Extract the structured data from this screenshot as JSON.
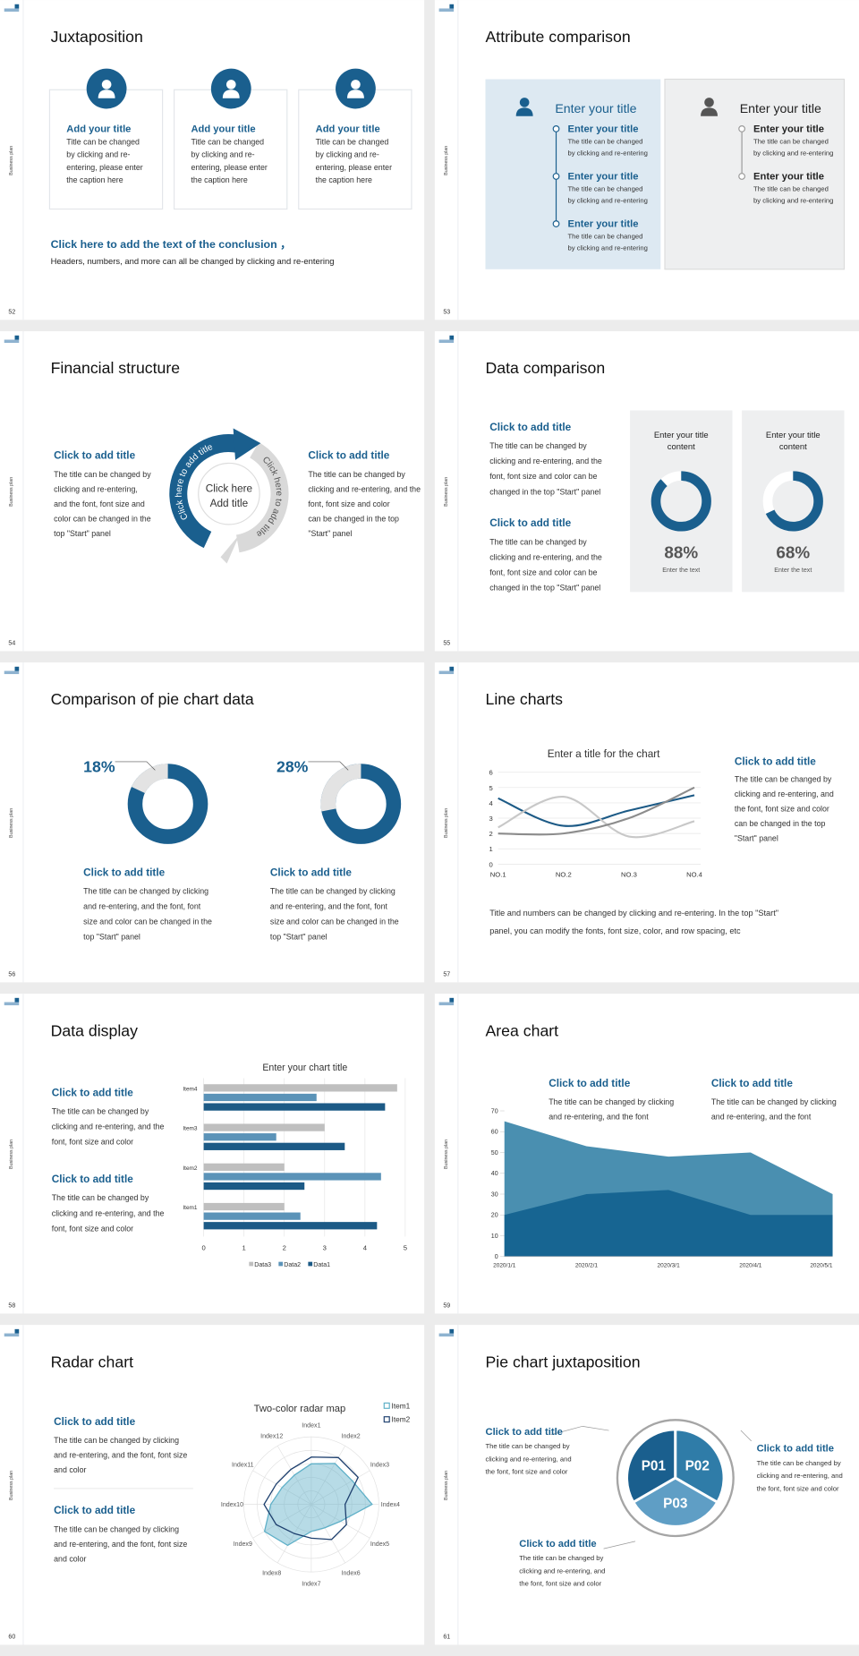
{
  "sidebar_label": "Business plan",
  "slides": [
    {
      "number": 52,
      "title": "Juxtaposition",
      "cards": [
        {
          "title": "Add your title",
          "body": [
            "Title can be changed",
            "by clicking and re-",
            "entering, please enter",
            "the caption here"
          ]
        },
        {
          "title": "Add your title",
          "body": [
            "Title can be changed",
            "by clicking and re-",
            "entering, please enter",
            "the caption here"
          ]
        },
        {
          "title": "Add your title",
          "body": [
            "Title can be changed",
            "by clicking and re-",
            "entering, please enter",
            "the caption here"
          ]
        }
      ],
      "conclusion": {
        "title": "Click here to add the text of the conclusion ，",
        "text": "Headers, numbers, and more can all be changed by clicking and re-entering"
      }
    },
    {
      "number": 53,
      "title": "Attribute comparison",
      "panels": [
        {
          "heading": "Enter your title",
          "items": [
            {
              "title": "Enter your title",
              "body": [
                "The title can be changed",
                "by clicking and re-entering"
              ]
            },
            {
              "title": "Enter your title",
              "body": [
                "The title can be changed",
                "by clicking and re-entering"
              ]
            },
            {
              "title": "Enter your title",
              "body": [
                "The title can be changed",
                "by clicking and re-entering"
              ]
            }
          ]
        },
        {
          "heading": "Enter your title",
          "items": [
            {
              "title": "Enter your title",
              "body": [
                "The title can be changed",
                "by clicking and re-entering"
              ]
            },
            {
              "title": "Enter your title",
              "body": [
                "The title can be changed",
                "by clicking and re-entering"
              ]
            }
          ]
        }
      ]
    },
    {
      "number": 54,
      "title": "Financial structure",
      "blocks": [
        {
          "title": "Click to add title",
          "body": [
            "The title can be changed by",
            "clicking and re-entering,",
            "and the font, font size and",
            "color can be changed in the",
            "top \"Start\" panel"
          ]
        },
        {
          "title": "Click to add title",
          "body": [
            "The title can be changed by",
            "clicking and re-entering, and the",
            "font, font size and color",
            "can be changed in the top",
            "\"Start\" panel"
          ]
        }
      ],
      "center": [
        "Click here",
        "Add title"
      ],
      "arc_labels": [
        "Click here to add title",
        "Click here to add title"
      ]
    },
    {
      "number": 55,
      "title": "Data comparison",
      "blocks": [
        {
          "title": "Click to add title",
          "body": [
            "The title can be changed by",
            "clicking and re-entering, and the",
            "font, font size and color can be",
            "changed in the top \"Start\" panel"
          ]
        },
        {
          "title": "Click to add title",
          "body": [
            "The title can be changed by",
            "clicking and re-entering, and the",
            "font, font size and color can be",
            "changed in the top \"Start\" panel"
          ]
        }
      ],
      "cards": [
        {
          "heading": [
            "Enter your title",
            "content"
          ],
          "value": 88,
          "value_label": "88%",
          "caption": "Enter the text"
        },
        {
          "heading": [
            "Enter your title",
            "content"
          ],
          "value": 68,
          "value_label": "68%",
          "caption": "Enter the text"
        }
      ]
    },
    {
      "number": 56,
      "title": "Comparison of pie chart data",
      "charts": [
        {
          "type": "donut",
          "value": 18,
          "value_label": "18%",
          "title": "Click to add title",
          "body": [
            "The title can be changed by clicking",
            "and re-entering, and the font, font",
            "size and color can be changed in the",
            "top \"Start\" panel"
          ]
        },
        {
          "type": "donut",
          "value": 28,
          "value_label": "28%",
          "title": "Click to add title",
          "body": [
            "The title can be changed by clicking",
            "and re-entering, and the font, font",
            "size and color can be changed in the",
            "top \"Start\" panel"
          ]
        }
      ]
    },
    {
      "number": 57,
      "title": "Line charts",
      "chart_data": {
        "type": "line",
        "title": "Enter a title for the chart",
        "categories": [
          "NO.1",
          "NO.2",
          "NO.3",
          "NO.4"
        ],
        "series": [
          {
            "color": "#1c5a86",
            "values": [
              4.3,
              2.5,
              3.5,
              4.5
            ]
          },
          {
            "color": "#c8c8c8",
            "values": [
              2.4,
              4.4,
              1.8,
              2.8
            ]
          },
          {
            "color": "#8c8c8c",
            "values": [
              2.0,
              2.0,
              3.0,
              5.0
            ]
          }
        ],
        "ylim": [
          0,
          6
        ],
        "yticks": [
          0,
          1,
          2,
          3,
          4,
          5,
          6
        ],
        "grid": true
      },
      "blocks": [
        {
          "title": "Click to add title",
          "body": [
            "The title can be changed by",
            "clicking and re-entering, and",
            "the font, font size and color",
            "can be changed in the top",
            "\"Start\" panel"
          ]
        }
      ],
      "footer": [
        "Title and numbers can be changed by clicking and re-entering. In the top \"Start\"",
        "panel, you can modify the fonts, font size, color, and row spacing, etc"
      ]
    },
    {
      "number": 58,
      "title": "Data display",
      "blocks": [
        {
          "title": "Click to add title",
          "body": [
            "The title can be changed by",
            "clicking and re-entering, and the",
            "font, font size and color"
          ]
        },
        {
          "title": "Click to add title",
          "body": [
            "The title can be changed by",
            "clicking and re-entering, and the",
            "font, font size and color"
          ]
        }
      ],
      "chart_data": {
        "type": "hbar",
        "title": "Enter your chart title",
        "categories": [
          "Item1",
          "Item2",
          "Item3",
          "Item4"
        ],
        "series": [
          {
            "name": "Data3",
            "color": "#bfbfbf",
            "values": [
              2.0,
              2.0,
              3.0,
              4.8
            ]
          },
          {
            "name": "Data2",
            "color": "#5b93b8",
            "values": [
              2.4,
              4.4,
              1.8,
              2.8
            ]
          },
          {
            "name": "Data1",
            "color": "#1c5a86",
            "values": [
              4.3,
              2.5,
              3.5,
              4.5
            ]
          }
        ],
        "xlim": [
          0,
          5
        ],
        "xticks": [
          0,
          1,
          2,
          3,
          4,
          5
        ],
        "grid": true
      }
    },
    {
      "number": 59,
      "title": "Area chart",
      "blocks": [
        {
          "title": "Click to add title",
          "body": [
            "The title can be changed by clicking",
            "and re-entering, and the font"
          ]
        },
        {
          "title": "Click to add title",
          "body": [
            "The title can be changed by clicking",
            "and re-entering, and the font"
          ]
        }
      ],
      "chart_data": {
        "type": "area",
        "categories": [
          "2020/1/1",
          "2020/2/1",
          "2020/3/1",
          "2020/4/1",
          "2020/5/1"
        ],
        "series": [
          {
            "color": "#4a8fb0",
            "values": [
              65,
              53,
              48,
              50,
              30
            ]
          },
          {
            "color": "#176592",
            "values": [
              20,
              30,
              32,
              20,
              20
            ]
          }
        ],
        "ylim": [
          0,
          70
        ],
        "yticks": [
          0,
          10,
          20,
          30,
          40,
          50,
          60,
          70
        ]
      }
    },
    {
      "number": 60,
      "title": "Radar chart",
      "blocks": [
        {
          "title": "Click to add title",
          "body": [
            "The title can be changed by clicking",
            "and re-entering, and the font, font size",
            "and color"
          ]
        },
        {
          "title": "Click to add title",
          "body": [
            "The title can be changed by clicking",
            "and re-entering, and the font, font size",
            "and color"
          ]
        }
      ],
      "chart_data": {
        "type": "radar",
        "title": "Two-color radar map",
        "categories": [
          "Index1",
          "Index2",
          "Index3",
          "Index4",
          "Index5",
          "Index6",
          "Index7",
          "Index8",
          "Index9",
          "Index10",
          "Index11",
          "Index12"
        ],
        "series": [
          {
            "name": "Item1",
            "color": "#5fb0c8",
            "values": [
              3,
              3.5,
              3.5,
              4.5,
              2.5,
              2,
              2,
              3.5,
              4,
              3,
              2.5,
              2.5
            ]
          },
          {
            "name": "Item2",
            "color": "#1d3f6e",
            "values": [
              3.5,
              4,
              4,
              2.5,
              3,
              3,
              2.5,
              2.5,
              3,
              3.5,
              3,
              3
            ]
          }
        ],
        "rlim": [
          0,
          5
        ],
        "rticks": [
          1,
          2,
          3,
          4,
          5
        ]
      }
    },
    {
      "number": 61,
      "title": "Pie chart juxtaposition",
      "chart_data": {
        "type": "pie",
        "categories": [
          "P01",
          "P02",
          "P03"
        ],
        "values": [
          1,
          1,
          1
        ],
        "colors": [
          "#1a5f8e",
          "#2f7ca8",
          "#5f9ec5"
        ]
      },
      "blocks": [
        {
          "title": "Click to add title",
          "body": [
            "The title can be changed by",
            "clicking and re-entering, and",
            "the font, font size and color"
          ]
        },
        {
          "title": "Click to add title",
          "body": [
            "The title can be changed by",
            "clicking and re-entering, and",
            "the font, font size and color"
          ]
        },
        {
          "title": "Click to add title",
          "body": [
            "The title can be changed by",
            "clicking and re-entering, and",
            "the font, font size and color"
          ]
        }
      ]
    }
  ]
}
